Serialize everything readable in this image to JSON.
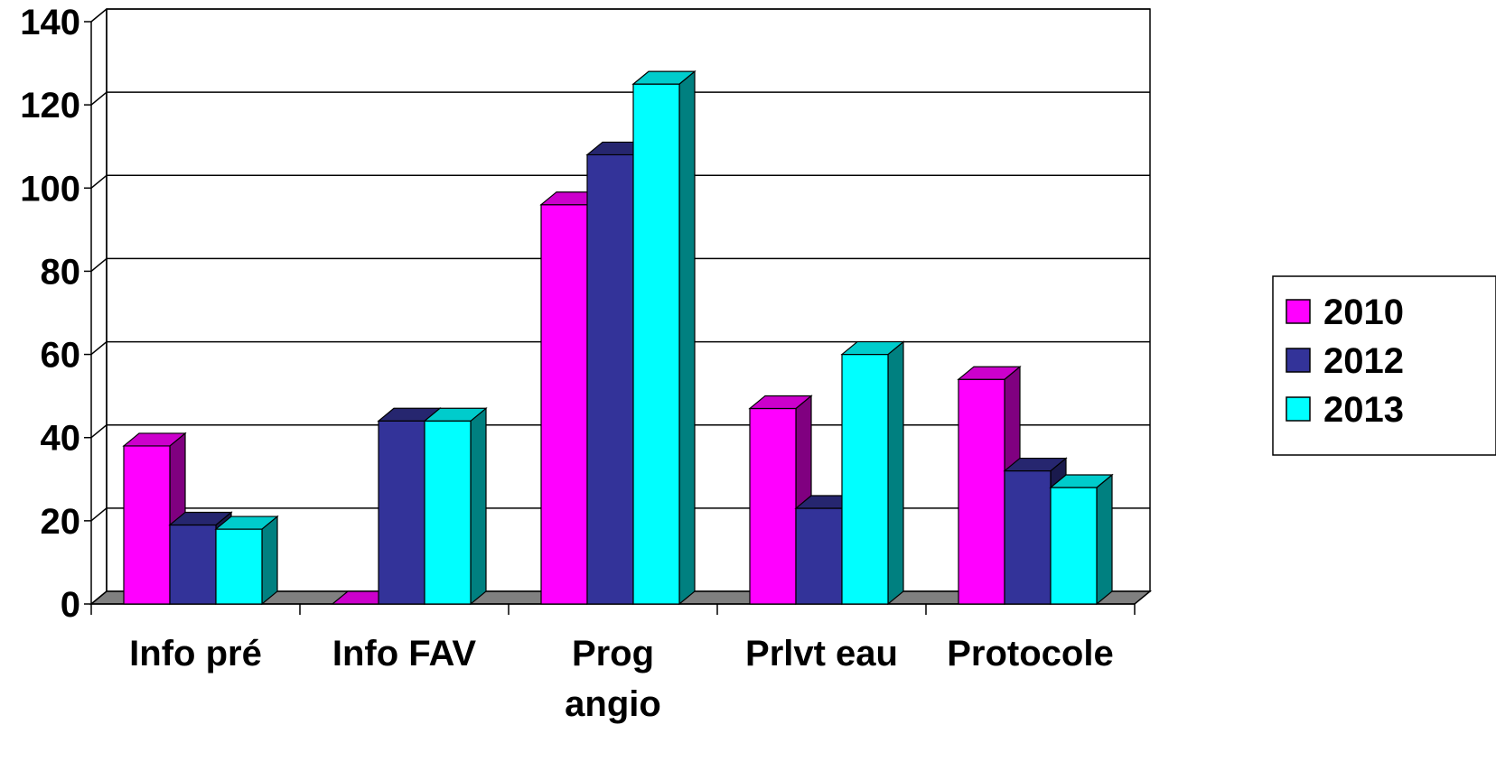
{
  "chart_data": {
    "type": "bar",
    "style": "3d-clustered",
    "categories": [
      [
        "Info pré"
      ],
      [
        "Info FAV"
      ],
      [
        "Prog",
        "angio"
      ],
      [
        "Prlvt eau"
      ],
      [
        "Protocole"
      ]
    ],
    "series": [
      {
        "name": "2010",
        "values": [
          38,
          0,
          96,
          47,
          54
        ]
      },
      {
        "name": "2012",
        "values": [
          19,
          44,
          108,
          23,
          32
        ]
      },
      {
        "name": "2013",
        "values": [
          18,
          44,
          125,
          60,
          28
        ]
      }
    ],
    "ylim": [
      0,
      140
    ],
    "yticks": [
      "0",
      "20",
      "40",
      "60",
      "80",
      "100",
      "120",
      "140"
    ],
    "grid": true,
    "legend_position": "right",
    "colors": {
      "2010": {
        "front": "#ff00ff",
        "top": "#cc00cc",
        "side": "#800080"
      },
      "2012": {
        "front": "#333399",
        "top": "#26266f",
        "side": "#1a1a4d"
      },
      "2013": {
        "front": "#00ffff",
        "top": "#00cccc",
        "side": "#008080"
      },
      "floor": "#808080",
      "gridline": "#000000"
    }
  }
}
